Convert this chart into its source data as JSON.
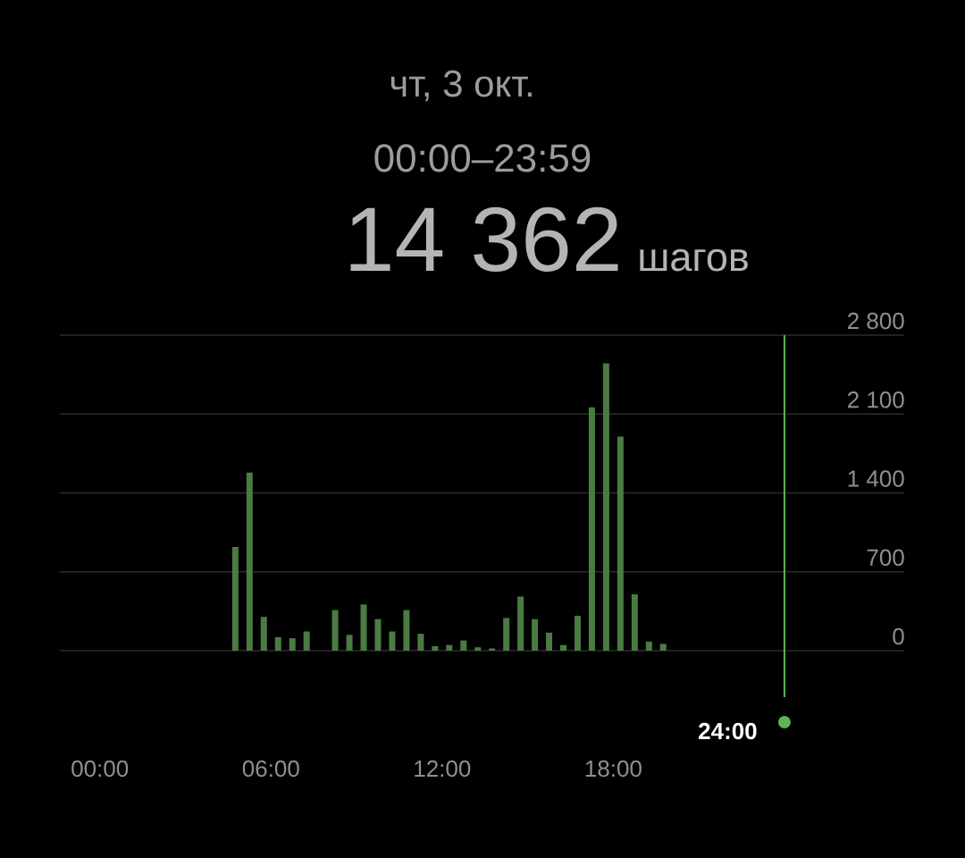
{
  "chart_data": {
    "type": "bar",
    "title": "чт, 3 окт.",
    "subtitle": "00:00–23:59",
    "annotations": [
      "14 362",
      "шагов"
    ],
    "x": [
      4.75,
      5.25,
      5.75,
      6.25,
      6.75,
      7.25,
      8.25,
      8.75,
      9.25,
      9.75,
      10.25,
      10.75,
      11.25,
      11.75,
      12.25,
      12.75,
      13.25,
      13.75,
      14.25,
      14.75,
      15.25,
      15.75,
      16.25,
      16.75,
      17.25,
      17.75,
      18.25,
      18.75,
      19.25,
      19.75
    ],
    "values": [
      920,
      1580,
      300,
      120,
      110,
      170,
      360,
      140,
      410,
      280,
      170,
      360,
      150,
      40,
      50,
      90,
      30,
      20,
      290,
      480,
      280,
      160,
      50,
      310,
      2160,
      2550,
      1900,
      500,
      80,
      60
    ],
    "color": "#4a7c42",
    "xlim": [
      -1.4,
      28.2
    ],
    "xticks": [
      {
        "value": 0,
        "label": "00:00"
      },
      {
        "value": 6,
        "label": "06:00"
      },
      {
        "value": 12,
        "label": "12:00"
      },
      {
        "value": 18,
        "label": "18:00"
      }
    ],
    "ylim": [
      0,
      2800
    ],
    "yticks": [
      0,
      700,
      {
        "value": 1400,
        "label": "1 400"
      },
      {
        "value": 2100,
        "label": "2 100"
      },
      {
        "value": 2800,
        "label": "2 800"
      }
    ],
    "grid": "y",
    "ref_lines": [
      {
        "axis": "x",
        "value": 24,
        "label": "24:00",
        "color": "#5fb35a"
      }
    ]
  }
}
